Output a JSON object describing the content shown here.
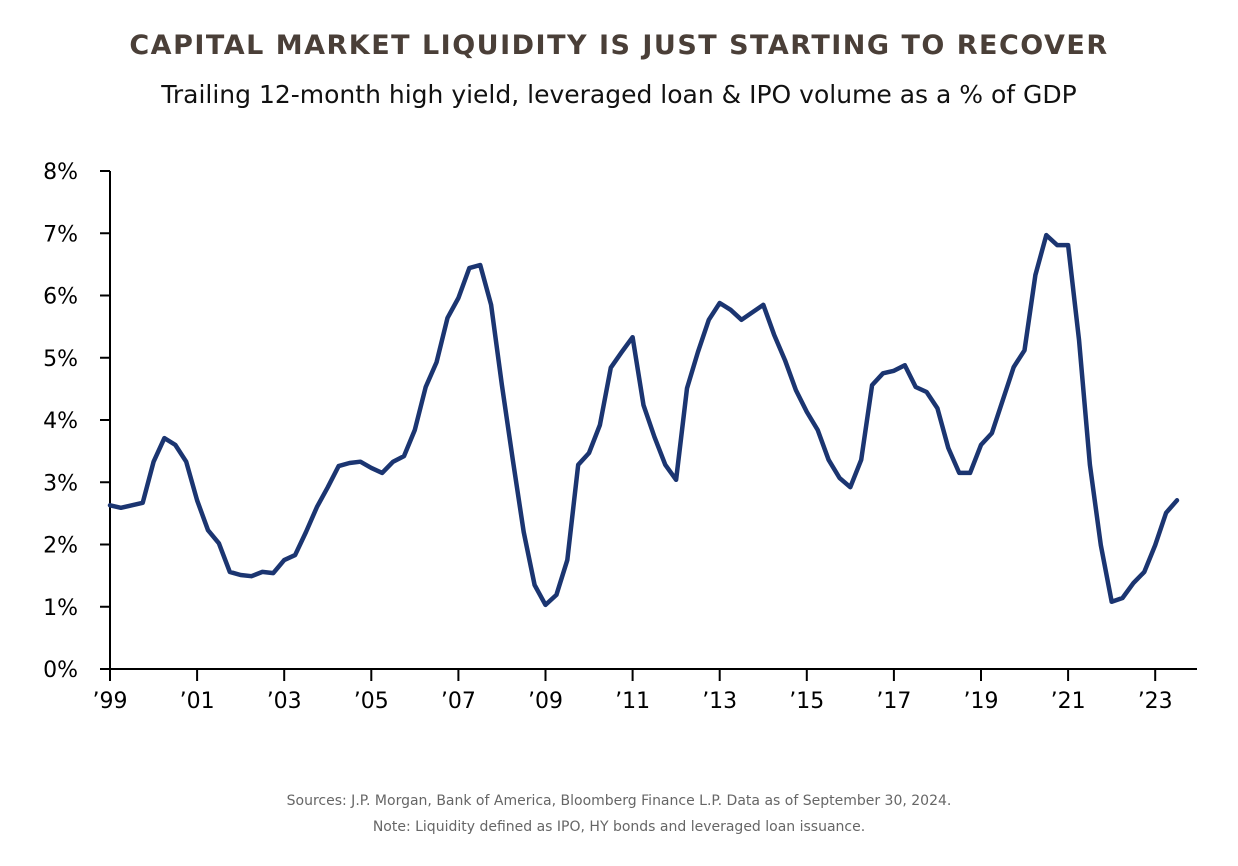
{
  "chart_data": {
    "type": "line",
    "title": "CAPITAL MARKET LIQUIDITY IS JUST STARTING TO RECOVER",
    "subtitle": "Trailing 12-month high yield, leveraged loan & IPO volume as a % of GDP",
    "xlabel": "",
    "ylabel": "",
    "ylim": [
      0,
      8
    ],
    "xlim": [
      1999,
      2024
    ],
    "yticks": [
      "0%",
      "1%",
      "2%",
      "3%",
      "4%",
      "5%",
      "6%",
      "7%",
      "8%"
    ],
    "xticks": [
      "’99",
      "’01",
      "’03",
      "’05",
      "’07",
      "’09",
      "’11",
      "’13",
      "’15",
      "’17",
      "’19",
      "’21",
      "’23"
    ],
    "grid": false,
    "series": [
      {
        "name": "HY, leveraged loan & IPO volume (% of GDP)",
        "color": "#1b3571",
        "x_start": 1999.0,
        "x_step_years": 0.25,
        "values": [
          2.63,
          2.59,
          2.63,
          2.67,
          3.33,
          3.71,
          3.6,
          3.33,
          2.71,
          2.23,
          2.02,
          1.56,
          1.51,
          1.49,
          1.56,
          1.54,
          1.75,
          1.83,
          2.2,
          2.6,
          2.92,
          3.26,
          3.31,
          3.33,
          3.23,
          3.15,
          3.33,
          3.42,
          3.84,
          4.53,
          4.93,
          5.64,
          5.96,
          6.44,
          6.49,
          5.85,
          4.56,
          3.36,
          2.2,
          1.35,
          1.03,
          1.19,
          1.75,
          3.28,
          3.47,
          3.92,
          4.84,
          5.09,
          5.33,
          4.24,
          3.73,
          3.28,
          3.04,
          4.51,
          5.09,
          5.61,
          5.88,
          5.77,
          5.61,
          5.73,
          5.85,
          5.37,
          4.96,
          4.48,
          4.13,
          3.84,
          3.36,
          3.07,
          2.92,
          3.36,
          4.56,
          4.75,
          4.79,
          4.88,
          4.53,
          4.45,
          4.19,
          3.55,
          3.15,
          3.15,
          3.6,
          3.79,
          4.32,
          4.85,
          5.12,
          6.33,
          6.97,
          6.81,
          6.81,
          5.29,
          3.28,
          1.99,
          1.08,
          1.14,
          1.38,
          1.56,
          1.99,
          2.51,
          2.71
        ]
      }
    ]
  },
  "footer": {
    "sources": "Sources: J.P. Morgan, Bank of America, Bloomberg Finance L.P. Data as of September 30, 2024.",
    "note": "Note: Liquidity defined as IPO, HY bonds and leveraged loan issuance."
  }
}
